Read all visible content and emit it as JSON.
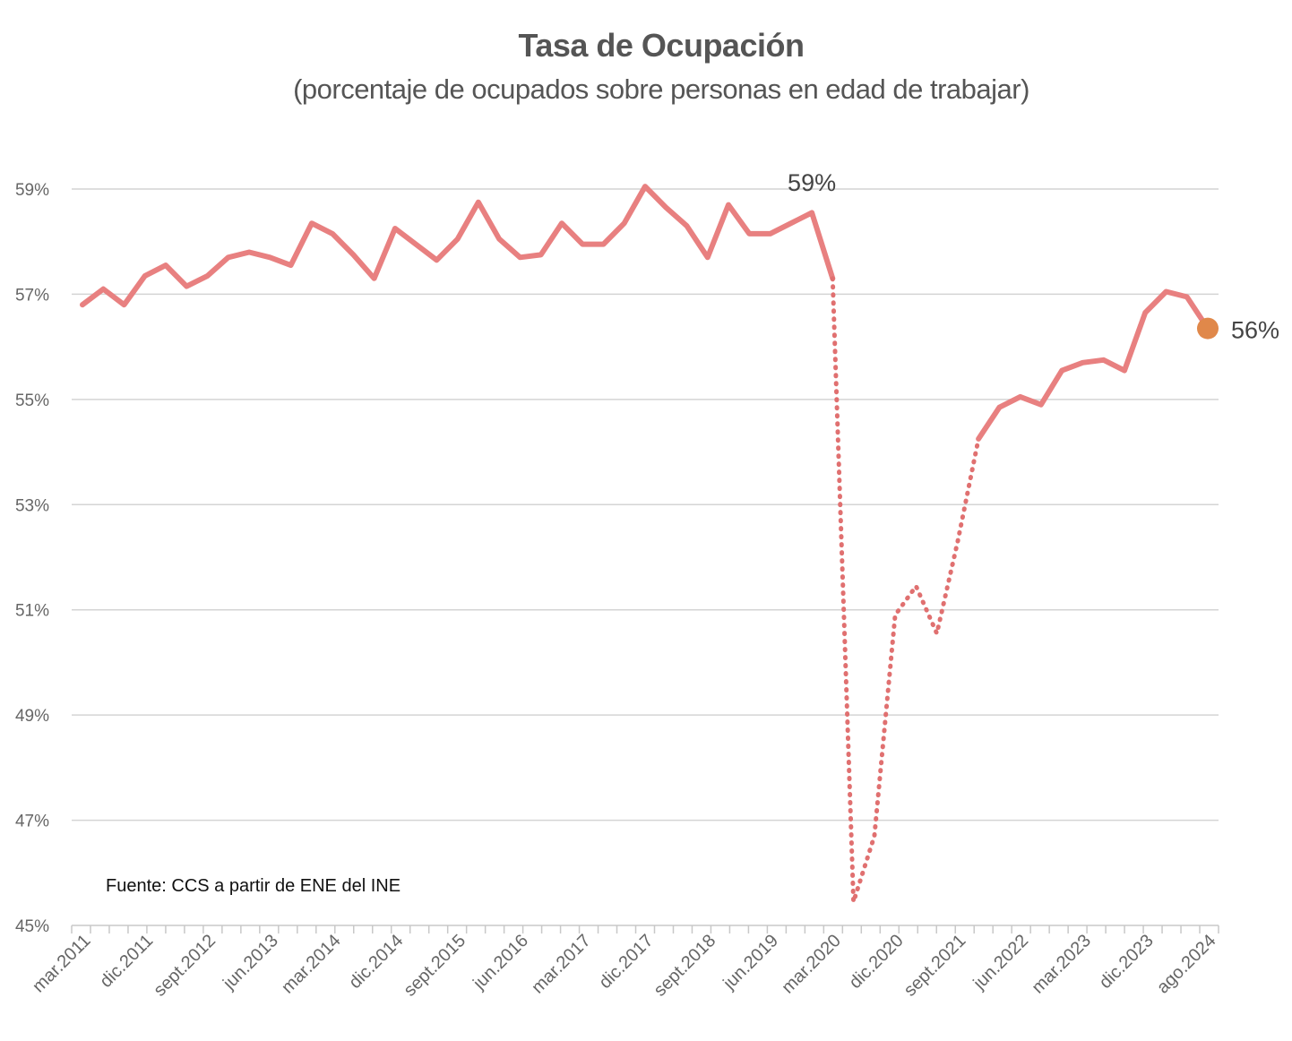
{
  "chart_data": {
    "type": "line",
    "title": "Tasa de Ocupación",
    "subtitle": "(porcentaje de ocupados sobre personas en edad de trabajar)",
    "xlabel": "",
    "ylabel": "",
    "ylim": [
      45,
      59.6
    ],
    "y_ticks": [
      "45%",
      "47%",
      "49%",
      "51%",
      "53%",
      "55%",
      "57%",
      "59%"
    ],
    "x_tick_labels": [
      "mar.2011",
      "dic.2011",
      "sept.2012",
      "jun.2013",
      "mar.2014",
      "dic.2014",
      "sept.2015",
      "jun.2016",
      "mar.2017",
      "dic.2017",
      "sept.2018",
      "jun.2019",
      "mar.2020",
      "dic.2020",
      "sept.2021",
      "jun.2022",
      "mar.2023",
      "dic.2023",
      "ago.2024"
    ],
    "grid": true,
    "series": [
      {
        "color": "#e88080",
        "values": [
          56.8,
          57.1,
          56.8,
          57.35,
          57.55,
          57.15,
          57.35,
          57.7,
          57.8,
          57.7,
          57.55,
          58.35,
          58.15,
          57.75,
          57.3,
          58.25,
          57.95,
          57.65,
          58.05,
          58.75,
          58.05,
          57.7,
          57.75,
          58.35,
          57.95,
          57.95,
          58.35,
          59.05,
          58.65,
          58.3,
          57.7,
          58.7,
          58.15,
          58.15,
          58.35,
          58.55,
          57.3,
          45.45,
          46.7,
          50.9,
          51.45,
          50.55,
          52.3,
          54.25,
          54.85,
          55.05,
          54.9,
          55.55,
          55.7,
          55.75,
          55.55,
          56.65,
          57.05,
          56.95,
          56.35
        ],
        "dotted_segment": {
          "start_index": 36,
          "end_index": 43
        }
      }
    ],
    "annotations": [
      {
        "text": "59%",
        "point_index": 35
      },
      {
        "text": "56%",
        "point_index": 54,
        "marker_color": "#e0884a"
      }
    ],
    "source": "Fuente: CCS a partir de ENE del INE"
  }
}
